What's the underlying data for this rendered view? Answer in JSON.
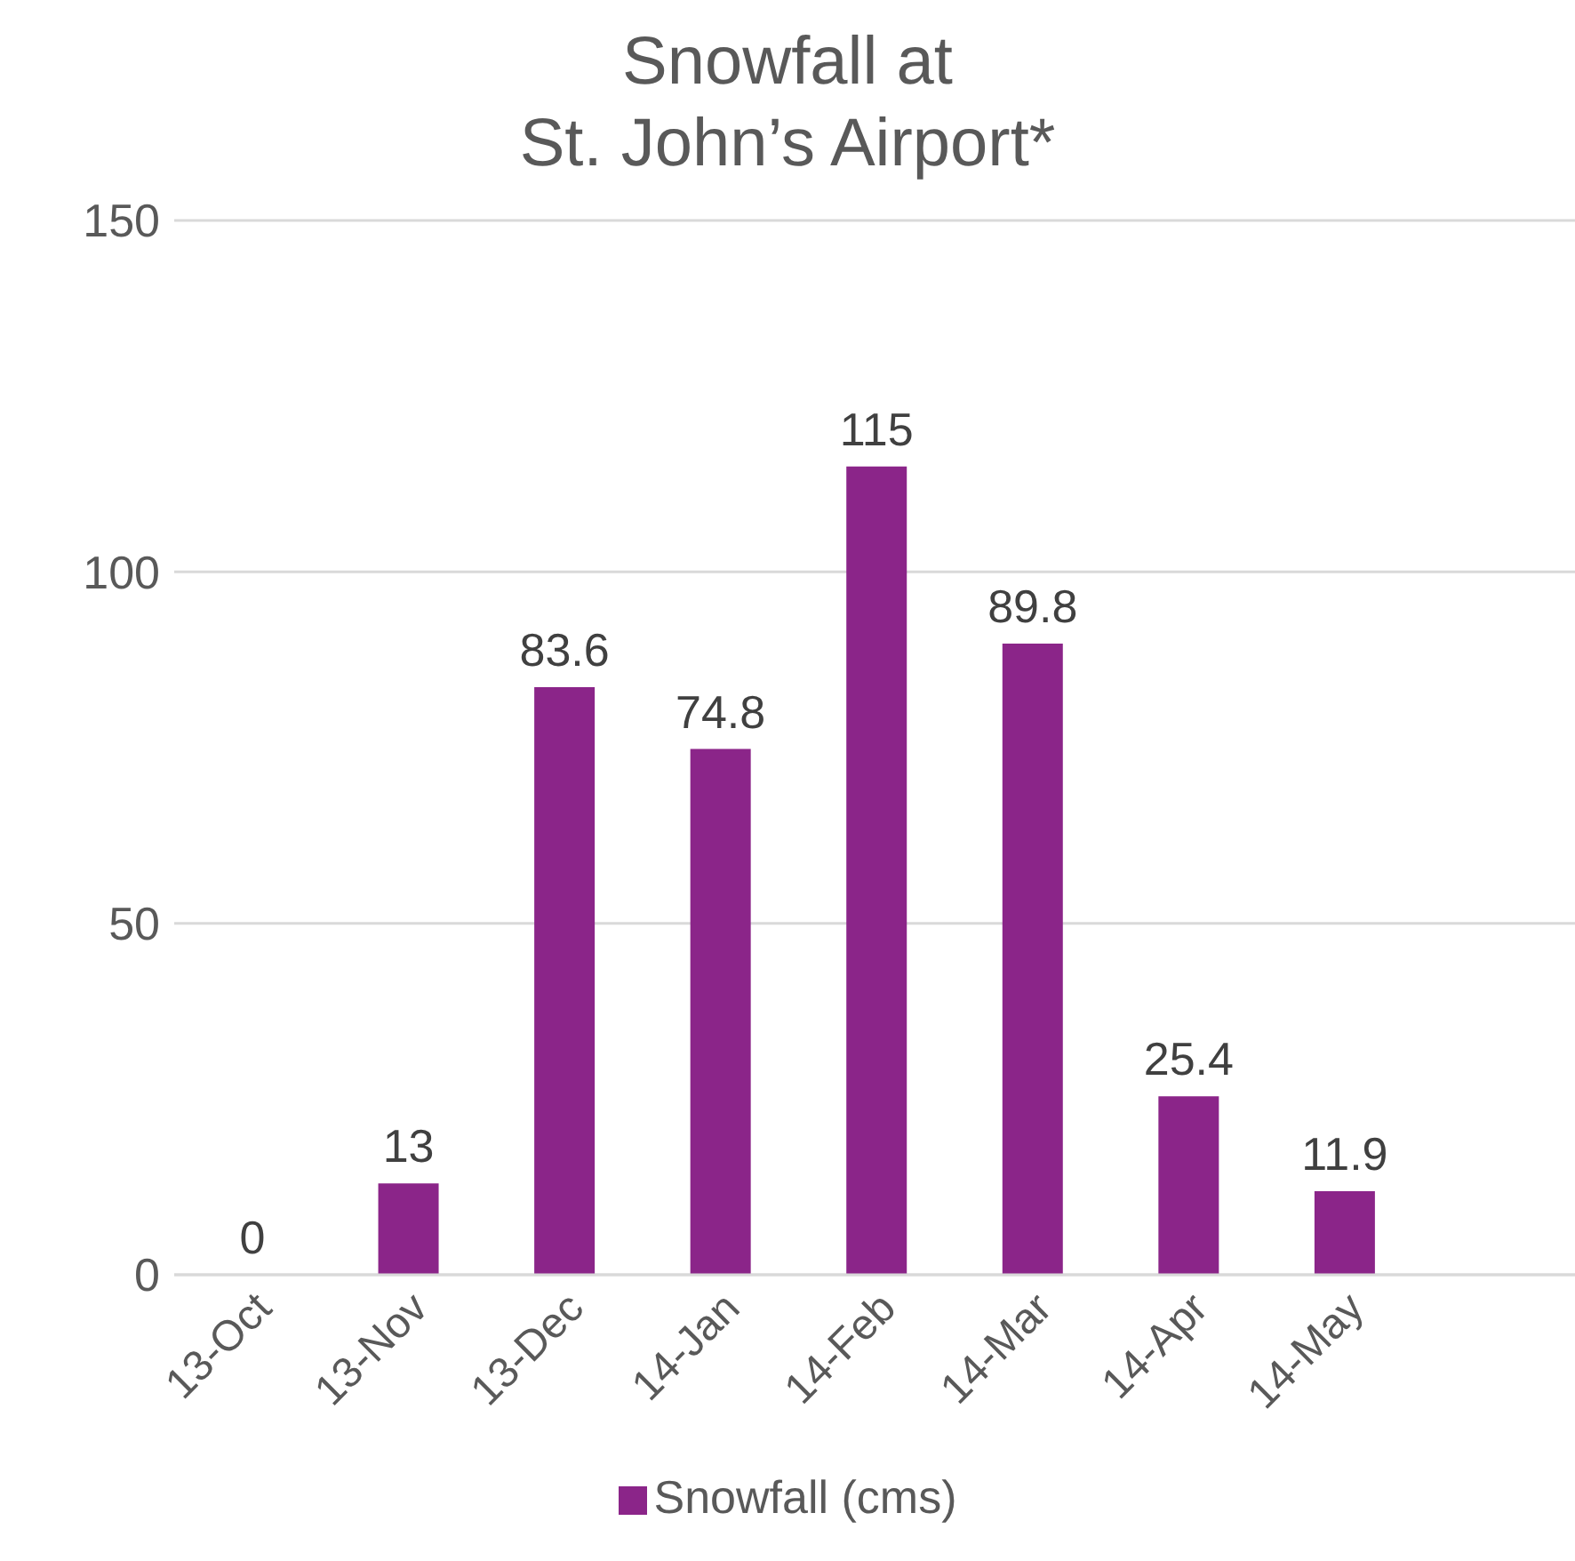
{
  "chart_data": {
    "type": "bar",
    "title": "Snowfall at\nSt. John’s Airport*",
    "categories": [
      "13-Oct",
      "13-Nov",
      "13-Dec",
      "14-Jan",
      "14-Feb",
      "14-Mar",
      "14-Apr",
      "14-May",
      null
    ],
    "series": [
      {
        "name": "Snowfall (cms)",
        "color": "#8b2589",
        "values": [
          0,
          13,
          83.6,
          74.8,
          115,
          89.8,
          25.4,
          11.9,
          null
        ]
      }
    ],
    "ylim": [
      0,
      150
    ],
    "yticks": [
      0,
      50,
      100,
      150
    ],
    "grid": "y",
    "legend": "bottom",
    "data_labels": true
  }
}
